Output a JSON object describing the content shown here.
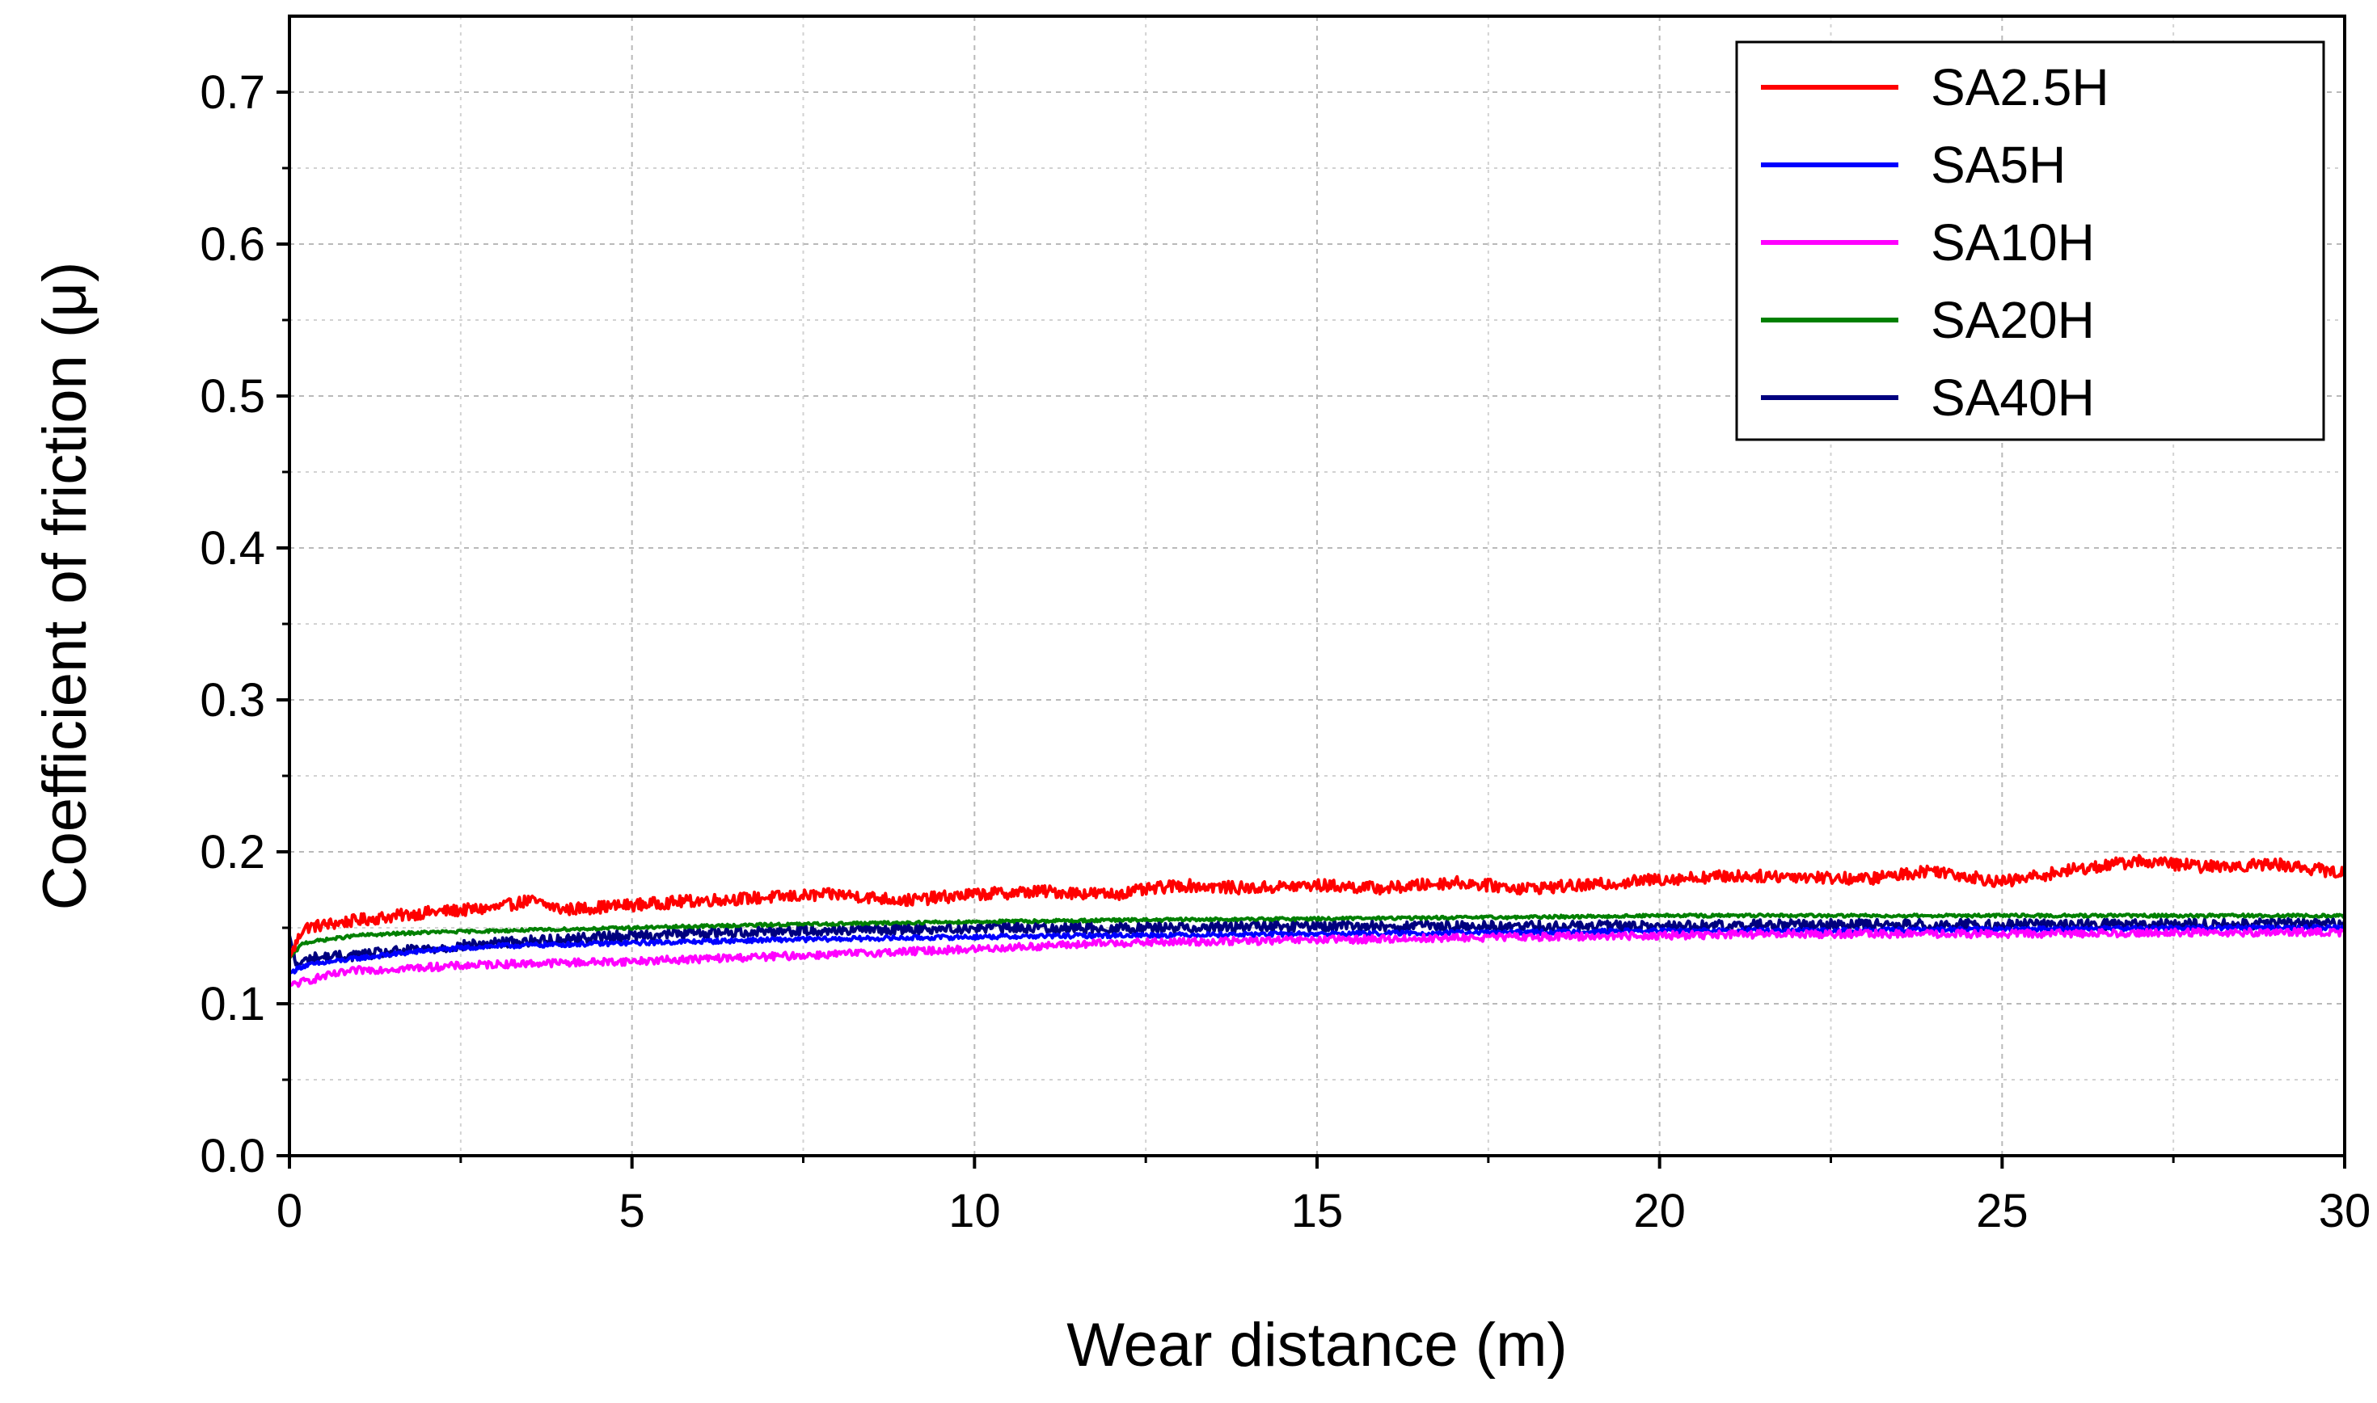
{
  "chart_data": {
    "type": "line",
    "title": "",
    "xlabel": "Wear distance (m)",
    "ylabel": "Coefficient of friction (μ)",
    "xlim": [
      0,
      30
    ],
    "ylim": [
      0,
      0.75
    ],
    "x_ticks": [
      0,
      5,
      10,
      15,
      20,
      25,
      30
    ],
    "x_tick_labels": [
      "0",
      "5",
      "10",
      "15",
      "20",
      "25",
      "30"
    ],
    "y_ticks": [
      0.0,
      0.1,
      0.2,
      0.3,
      0.4,
      0.5,
      0.6,
      0.7
    ],
    "y_tick_labels": [
      "0.0",
      "0.1",
      "0.2",
      "0.3",
      "0.4",
      "0.5",
      "0.6",
      "0.7"
    ],
    "grid": true,
    "legend_position": "top-right",
    "series": [
      {
        "name": "SA2.5H",
        "color": "#ff0000",
        "noise": 0.004,
        "x": [
          0,
          0.2,
          1,
          2,
          3,
          3.5,
          4,
          5,
          6,
          7,
          8,
          9,
          10,
          11,
          12,
          13,
          14,
          15,
          16,
          17,
          18,
          19,
          20,
          21,
          22,
          23,
          24,
          25,
          26,
          27,
          28,
          29,
          30
        ],
        "y": [
          0.13,
          0.15,
          0.155,
          0.16,
          0.163,
          0.168,
          0.162,
          0.165,
          0.168,
          0.17,
          0.172,
          0.168,
          0.172,
          0.174,
          0.172,
          0.178,
          0.176,
          0.178,
          0.176,
          0.18,
          0.176,
          0.178,
          0.182,
          0.184,
          0.184,
          0.182,
          0.188,
          0.18,
          0.188,
          0.194,
          0.19,
          0.192,
          0.186
        ]
      },
      {
        "name": "SA5H",
        "color": "#0000ff",
        "noise": 0.0015,
        "x": [
          0,
          0.2,
          1,
          2,
          3,
          5,
          7,
          10,
          12,
          15,
          18,
          20,
          22,
          25,
          28,
          30
        ],
        "y": [
          0.12,
          0.125,
          0.13,
          0.135,
          0.138,
          0.14,
          0.142,
          0.144,
          0.145,
          0.146,
          0.147,
          0.148,
          0.148,
          0.149,
          0.15,
          0.15
        ]
      },
      {
        "name": "SA10H",
        "color": "#ff00ff",
        "noise": 0.0025,
        "x": [
          0,
          0.5,
          1,
          2,
          3,
          5,
          7,
          10,
          12,
          15,
          18,
          20,
          22,
          25,
          28,
          30
        ],
        "y": [
          0.112,
          0.118,
          0.122,
          0.124,
          0.126,
          0.128,
          0.131,
          0.136,
          0.14,
          0.142,
          0.144,
          0.145,
          0.146,
          0.146,
          0.147,
          0.147
        ]
      },
      {
        "name": "SA20H",
        "color": "#008000",
        "noise": 0.001,
        "x": [
          0,
          0.2,
          0.5,
          1,
          2,
          3,
          5,
          7,
          10,
          12,
          15,
          18,
          20,
          22,
          25,
          28,
          30
        ],
        "y": [
          0.13,
          0.14,
          0.142,
          0.145,
          0.147,
          0.148,
          0.15,
          0.152,
          0.154,
          0.155,
          0.156,
          0.157,
          0.158,
          0.158,
          0.158,
          0.158,
          0.158
        ]
      },
      {
        "name": "SA40H",
        "color": "#00007f",
        "noise": 0.0035,
        "x": [
          0,
          0.1,
          0.3,
          1,
          2,
          3,
          5,
          7,
          10,
          12,
          15,
          18,
          20,
          22,
          25,
          28,
          30
        ],
        "y": [
          0.145,
          0.125,
          0.13,
          0.132,
          0.136,
          0.14,
          0.145,
          0.148,
          0.15,
          0.15,
          0.151,
          0.151,
          0.151,
          0.152,
          0.152,
          0.152,
          0.153
        ]
      }
    ]
  }
}
